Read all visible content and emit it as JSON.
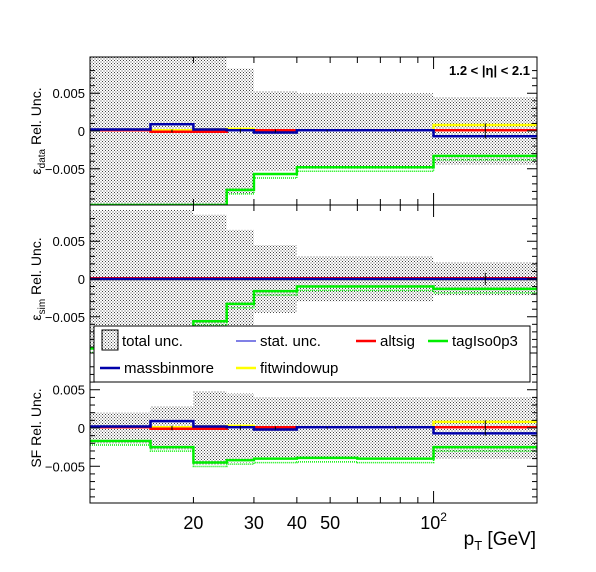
{
  "chart_data": {
    "type": "line",
    "region_label": "1.2 < |η| < 2.1",
    "x_edges": [
      10,
      15,
      20,
      25,
      30,
      40,
      60,
      100,
      200
    ],
    "x_range": [
      10,
      200
    ],
    "x_axis_ticks": [
      {
        "value": 20,
        "label": "20"
      },
      {
        "value": 30,
        "label": "30"
      },
      {
        "value": 40,
        "label": "40"
      },
      {
        "value": 50,
        "label": "50"
      },
      {
        "value": 100,
        "label": "10",
        "sup": "2"
      }
    ],
    "xlabel": {
      "main": "p",
      "sub": "T",
      "unit": " [GeV]"
    },
    "legend": {
      "entries": [
        {
          "key": "total",
          "label": "total unc."
        },
        {
          "key": "stat",
          "label": "stat. unc."
        },
        {
          "key": "altsig",
          "label": "altsig"
        },
        {
          "key": "tagIso0p3",
          "label": "tagIso0p3"
        },
        {
          "key": "massbinmore",
          "label": "massbinmore"
        },
        {
          "key": "fitwindowup",
          "label": "fitwindowup"
        }
      ]
    },
    "colors": {
      "stat": "#0000cc",
      "altsig": "#ff0000",
      "tagIso0p3": "#00ee00",
      "massbinmore": "#0000aa",
      "fitwindowup": "#ffff00",
      "band": "#555555"
    },
    "panels": [
      {
        "key": "data",
        "ylabel": {
          "main": "ε",
          "sub": "data",
          "rest": " Rel. Unc."
        },
        "ylim": [
          -0.0098,
          0.0098
        ],
        "yticks": [
          {
            "value": 0.005,
            "label": "0.005"
          },
          {
            "value": 0,
            "label": "0"
          },
          {
            "value": -0.005,
            "label": "−0.005"
          }
        ],
        "total_unc": [
          0.0098,
          0.0098,
          0.0098,
          0.0083,
          0.0053,
          0.005,
          0.005,
          0.0045
        ],
        "stat_unc": [
          0,
          0.0002,
          0,
          0.0003,
          0.0002,
          0.0001,
          0.0001,
          0.001
        ],
        "series": {
          "altsig": [
            0.0001,
            -0.0001,
            -0.0001,
            0.0001,
            0.0001,
            0.0001,
            0.0001,
            0.0001
          ],
          "massbinmore": [
            0.0002,
            0.0009,
            0.0002,
            0.0001,
            -0.0002,
            0.0001,
            0.0001,
            -0.0007
          ],
          "fitwindowup": [
            0.0001,
            0.0001,
            0.0002,
            0.0003,
            0.0001,
            0.0001,
            0.0001,
            0.0008
          ],
          "tagIso0p3": [
            -0.0098,
            -0.0098,
            -0.0098,
            -0.0078,
            -0.0057,
            -0.0048,
            -0.0048,
            -0.0033
          ]
        }
      },
      {
        "key": "sim",
        "ylabel": {
          "main": "ε",
          "sub": "sim",
          "rest": " Rel. Unc."
        },
        "ylim": [
          -0.0098,
          0.0098
        ],
        "yticks": [
          {
            "value": 0.005,
            "label": "0.005"
          },
          {
            "value": 0,
            "label": "0"
          },
          {
            "value": -0.005,
            "label": "−0.005"
          }
        ],
        "total_unc": [
          0.0092,
          0.0092,
          0.0085,
          0.0065,
          0.0045,
          0.003,
          0.003,
          0.0022
        ],
        "stat_unc": [
          0,
          0,
          0,
          0,
          0,
          0,
          0,
          0.0008
        ],
        "series": {
          "altsig": [
            0.0001,
            0.0001,
            0.0001,
            0.0001,
            0.0001,
            0.0001,
            0.0001,
            0.0001
          ],
          "massbinmore": [
            0,
            0,
            0,
            0,
            0,
            0,
            0,
            0
          ],
          "fitwindowup": [
            0,
            0,
            0,
            0,
            0,
            0,
            0,
            0
          ],
          "tagIso0p3": [
            -0.0092,
            -0.0092,
            -0.0056,
            -0.0033,
            -0.0016,
            -0.001,
            -0.001,
            -0.0013
          ]
        }
      },
      {
        "key": "sf",
        "ylabel": {
          "main": "SF Rel. Unc.",
          "sub": "",
          "rest": ""
        },
        "ylim": [
          -0.0098,
          0.0098
        ],
        "yticks": [
          {
            "value": 0.005,
            "label": "0.005"
          },
          {
            "value": 0,
            "label": "0"
          },
          {
            "value": -0.005,
            "label": "−0.005"
          }
        ],
        "total_unc": [
          0.002,
          0.0028,
          0.0048,
          0.0045,
          0.004,
          0.004,
          0.004,
          0.004
        ],
        "stat_unc": [
          0,
          0.0003,
          0,
          0.0003,
          0.0002,
          0.0001,
          0.0001,
          0.001
        ],
        "series": {
          "altsig": [
            0.0001,
            -0.0001,
            -0.0001,
            0.0001,
            0.0001,
            0.0001,
            0.0001,
            0.0001
          ],
          "massbinmore": [
            0.0002,
            0.0009,
            0.0002,
            0.0001,
            -0.0002,
            0.0001,
            0.0001,
            -0.0007
          ],
          "fitwindowup": [
            0.0001,
            0.0001,
            0.0002,
            0.0003,
            0.0001,
            0.0001,
            0.0001,
            0.0008
          ],
          "tagIso0p3": [
            -0.0017,
            -0.0025,
            -0.0045,
            -0.0042,
            -0.004,
            -0.0039,
            -0.004,
            -0.0025
          ]
        }
      }
    ]
  }
}
